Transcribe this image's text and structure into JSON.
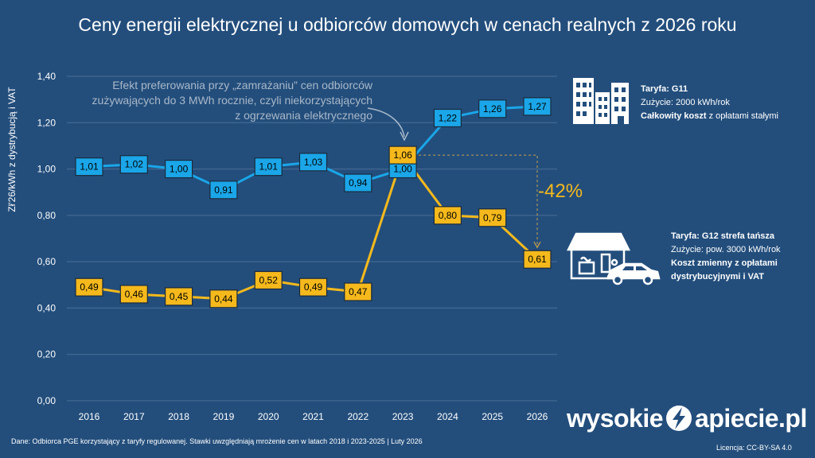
{
  "title": "Ceny energii elektrycznej u odbiorców domowych w cenach realnych z 2026 roku",
  "annotation": "Efekt preferowania przy „zamrażaniu” cen odbiorców zużywających do 3 MWh rocznie, czyli niekorzystających z ogrzewania elektrycznego",
  "percent_change": "-42%",
  "tariff_g11": {
    "name": "Taryfa: G11",
    "usage": "Zużycie: 2000 kWh/rok",
    "cost_bold": "Całkowity koszt",
    "cost_rest": " z opłatami stałymi"
  },
  "tariff_g12": {
    "name": "Taryfa: G12 strefa tańsza",
    "usage": "Zużycie: pow. 3000 kWh/rok",
    "cost": "Koszt zmienny z opłatami dystrybucyjnymi i VAT"
  },
  "footer": {
    "source": "Dane: Odbiorca PGE korzystający z taryfy regulowanej. Stawki uwzględniają mrożenie cen w latach 2018 i 2023-2025   |   Luty 2026",
    "brand_left": "wysokie",
    "brand_right": "apiecie.pl",
    "license": "Licencja: CC-BY-SA 4.0"
  },
  "icons": [
    "building-icon",
    "house-icon",
    "electric-car-icon",
    "lightning-bolt-icon"
  ],
  "colors": {
    "background": "#234e7c",
    "g11": "#1aa6e8",
    "g12": "#f5b91c",
    "grid": "#4a6f95"
  },
  "chart_data": {
    "type": "line",
    "title": "Ceny energii elektrycznej u odbiorców domowych w cenach realnych z 2026 roku",
    "xlabel": "",
    "ylabel": "Zł'26/kWh z dystrybucją i VAT",
    "ylim": [
      0,
      1.4
    ],
    "yticks": [
      "0,00",
      "0,20",
      "0,40",
      "0,60",
      "0,80",
      "1,00",
      "1,20",
      "1,40"
    ],
    "ytick_values": [
      0,
      0.2,
      0.4,
      0.6,
      0.8,
      1.0,
      1.2,
      1.4
    ],
    "categories": [
      "2016",
      "2017",
      "2018",
      "2019",
      "2020",
      "2021",
      "2022",
      "2023",
      "2024",
      "2025",
      "2026"
    ],
    "grid": true,
    "series": [
      {
        "key": "g11",
        "color": "#1aa6e8",
        "values": [
          1.01,
          1.02,
          1.0,
          0.91,
          1.01,
          1.03,
          0.94,
          1.0,
          1.22,
          1.26,
          1.27
        ],
        "labels": [
          "1,01",
          "1,02",
          "1,00",
          "0,91",
          "1,01",
          "1,03",
          "0,94",
          "1,00",
          "1,22",
          "1,26",
          "1,27"
        ]
      },
      {
        "key": "g12",
        "color": "#f5b91c",
        "values": [
          0.49,
          0.46,
          0.45,
          0.44,
          0.52,
          0.49,
          0.47,
          1.06,
          0.8,
          0.79,
          0.61
        ],
        "labels": [
          "0,49",
          "0,46",
          "0,45",
          "0,44",
          "0,52",
          "0,49",
          "0,47",
          "1,06",
          "0,80",
          "0,79",
          "0,61"
        ]
      }
    ]
  }
}
